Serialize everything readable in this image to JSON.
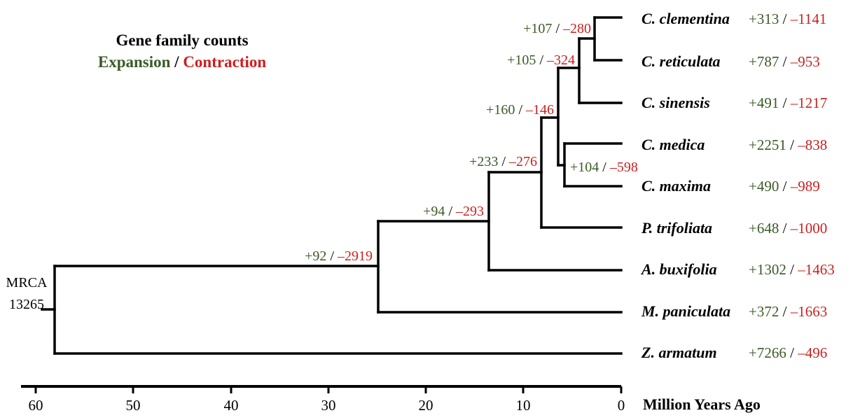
{
  "legend": {
    "title": "Gene family counts",
    "expansion": "Expansion",
    "separator": "/",
    "contraction": "Contraction"
  },
  "root": {
    "label": "MRCA",
    "count": "13265"
  },
  "colors": {
    "expansion": "#3a5a26",
    "contraction": "#cc1f1f",
    "line": "#000000"
  },
  "taxa": [
    {
      "name": "C. clementina",
      "expansion": "+313",
      "contraction": "–1141"
    },
    {
      "name": "C. reticulata",
      "expansion": "+787",
      "contraction": "–953"
    },
    {
      "name": "C. sinensis",
      "expansion": "+491",
      "contraction": "–1217"
    },
    {
      "name": "C. medica",
      "expansion": "+2251",
      "contraction": "–838"
    },
    {
      "name": "C. maxima",
      "expansion": "+490",
      "contraction": "–989"
    },
    {
      "name": "P. trifoliata",
      "expansion": "+648",
      "contraction": "–1000"
    },
    {
      "name": "A. buxifolia",
      "expansion": "+1302",
      "contraction": "–1463"
    },
    {
      "name": "M. paniculata",
      "expansion": "+372",
      "contraction": "–1663"
    },
    {
      "name": "Z. armatum",
      "expansion": "+7266",
      "contraction": "–496"
    }
  ],
  "internal_nodes": [
    {
      "expansion": "+107",
      "contraction": "–280"
    },
    {
      "expansion": "+105",
      "contraction": "–324"
    },
    {
      "expansion": "+160",
      "contraction": "–146"
    },
    {
      "expansion": "+104",
      "contraction": "–598"
    },
    {
      "expansion": "+233",
      "contraction": "–276"
    },
    {
      "expansion": "+94",
      "contraction": "–293"
    },
    {
      "expansion": "+92",
      "contraction": "–2919"
    }
  ],
  "axis": {
    "ticks": [
      "60",
      "50",
      "40",
      "30",
      "20",
      "10",
      "0"
    ],
    "label": "Million Years Ago"
  }
}
